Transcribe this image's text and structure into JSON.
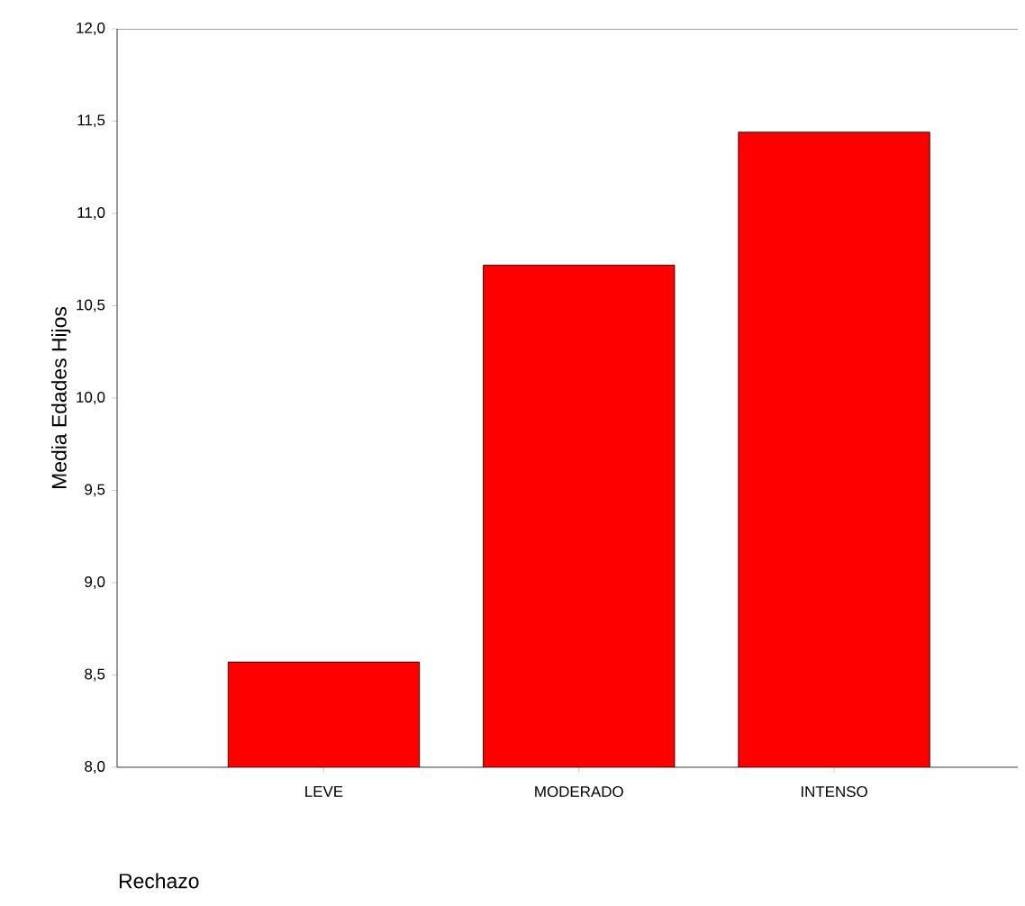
{
  "chart_data": {
    "type": "bar",
    "categories": [
      "LEVE",
      "MODERADO",
      "INTENSO"
    ],
    "values": [
      8.57,
      10.72,
      11.44
    ],
    "color": "#ff0000",
    "xlabel": "Rechazo",
    "ylabel": "Media Edades Hijos",
    "ylim": [
      8,
      12
    ],
    "yticks": [
      {
        "value": 8,
        "label": "8,0"
      },
      {
        "value": 8.5,
        "label": "8,5"
      },
      {
        "value": 9,
        "label": "9,0"
      },
      {
        "value": 9.5,
        "label": "9,5"
      },
      {
        "value": 10,
        "label": "10,0"
      },
      {
        "value": 10.5,
        "label": "10,5"
      },
      {
        "value": 11,
        "label": "11,0"
      },
      {
        "value": 11.5,
        "label": "11,5"
      },
      {
        "value": 12,
        "label": "12,0"
      }
    ],
    "grid": false
  }
}
